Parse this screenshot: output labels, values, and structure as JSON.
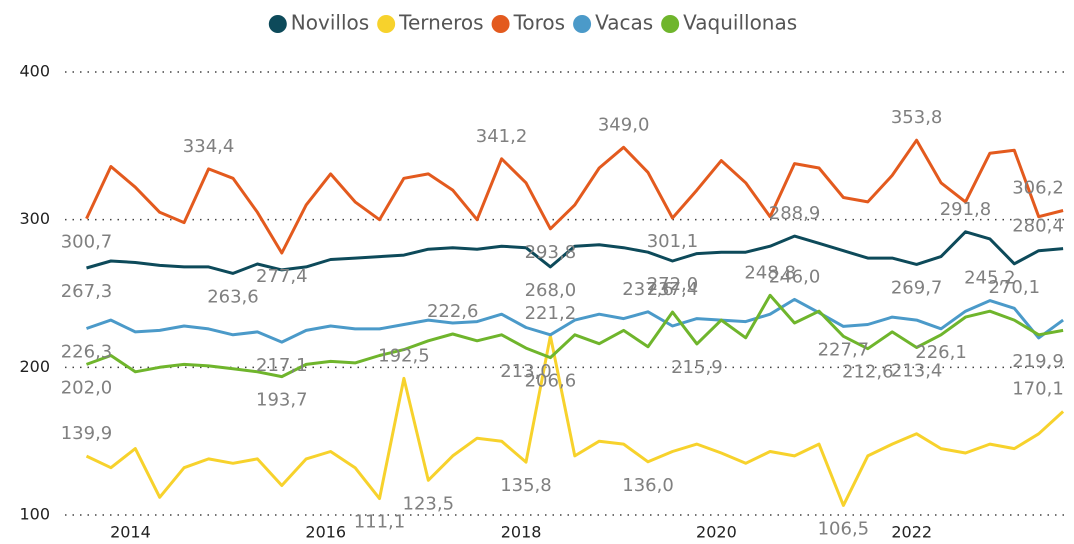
{
  "chart_data": {
    "type": "line",
    "x": [
      2013.55,
      2013.8,
      2014.05,
      2014.3,
      2014.55,
      2014.8,
      2015.05,
      2015.3,
      2015.55,
      2015.8,
      2016.05,
      2016.3,
      2016.55,
      2016.8,
      2017.05,
      2017.3,
      2017.55,
      2017.8,
      2018.05,
      2018.3,
      2018.55,
      2018.8,
      2019.05,
      2019.3,
      2019.55,
      2019.8,
      2020.05,
      2020.3,
      2020.55,
      2020.8,
      2021.05,
      2021.3,
      2021.55,
      2021.8,
      2022.05,
      2022.3,
      2022.55,
      2022.8,
      2023.05,
      2023.3,
      2023.55
    ],
    "xlim": [
      2013.33,
      2023.6
    ],
    "xticks": [
      2014,
      2016,
      2018,
      2020,
      2022
    ],
    "ylim": [
      100,
      400
    ],
    "yticks": [
      100,
      200,
      300,
      400
    ],
    "grid": true,
    "legend": "top",
    "series": [
      {
        "name": "Novillos",
        "color": "#0d4a5a",
        "values": [
          267.3,
          272,
          271,
          269,
          268,
          268,
          263.6,
          270,
          266,
          268,
          273,
          274,
          275,
          276,
          280,
          281,
          280,
          282,
          281,
          268.0,
          282,
          283,
          281,
          278,
          272.0,
          277,
          278,
          278,
          282,
          288.9,
          284,
          279,
          274,
          274,
          269.7,
          275,
          291.8,
          287,
          270.1,
          279,
          280.4
        ],
        "value_labels": [
          "267,3",
          null,
          null,
          null,
          null,
          null,
          "263,6",
          null,
          null,
          null,
          null,
          null,
          null,
          null,
          null,
          null,
          null,
          null,
          null,
          "268,0",
          null,
          null,
          null,
          null,
          "272,0",
          null,
          null,
          null,
          null,
          "288,9",
          null,
          null,
          null,
          null,
          "269,7",
          null,
          "291,8",
          null,
          "270,1",
          null,
          "280,4"
        ]
      },
      {
        "name": "Terneros",
        "color": "#f7d22c",
        "values": [
          139.9,
          132,
          145,
          112,
          132,
          138,
          135,
          138,
          120,
          138,
          143,
          132,
          111.1,
          192.5,
          123.5,
          140,
          152,
          150,
          135.8,
          221.2,
          140,
          150,
          148,
          136.0,
          143,
          148,
          142,
          135,
          143,
          140,
          148,
          106.5,
          140,
          148,
          155,
          145,
          142,
          148,
          145,
          155,
          170.1
        ],
        "value_labels": [
          "139,9",
          null,
          null,
          null,
          null,
          null,
          null,
          null,
          null,
          null,
          null,
          null,
          "111,1",
          "192,5",
          "123,5",
          null,
          null,
          null,
          "135,8",
          "221,2",
          null,
          null,
          null,
          "136,0",
          null,
          null,
          null,
          null,
          null,
          null,
          null,
          "106,5",
          null,
          null,
          null,
          null,
          null,
          null,
          null,
          null,
          "170,1"
        ]
      },
      {
        "name": "Toros",
        "color": "#e35a1e",
        "values": [
          300.7,
          336,
          322,
          305,
          298,
          334.4,
          328,
          305,
          277.4,
          310,
          331,
          312,
          300,
          328,
          331,
          320,
          300,
          341.2,
          325,
          293.8,
          310,
          335,
          349.0,
          332,
          301.1,
          320,
          340,
          325,
          302,
          338,
          335,
          315,
          312,
          330,
          353.8,
          325,
          312,
          345,
          347,
          302,
          306.2
        ],
        "value_labels": [
          "300,7",
          null,
          null,
          null,
          null,
          "334,4",
          null,
          null,
          "277,4",
          null,
          null,
          null,
          null,
          null,
          null,
          null,
          null,
          "341,2",
          null,
          "293,8",
          null,
          null,
          "349,0",
          null,
          "301,1",
          null,
          null,
          null,
          null,
          null,
          null,
          null,
          null,
          null,
          "353,8",
          null,
          null,
          null,
          null,
          null,
          "306,2"
        ]
      },
      {
        "name": "Vacas",
        "color": "#4b9ac9",
        "values": [
          226.3,
          232,
          224,
          225,
          228,
          226,
          222,
          224,
          217.1,
          225,
          228,
          226,
          226,
          229,
          232,
          230,
          231,
          236,
          227,
          222,
          232,
          236,
          233,
          237.6,
          228,
          233,
          232,
          231,
          236,
          246.0,
          237,
          227.7,
          229,
          234,
          232,
          226.1,
          238,
          245.2,
          240,
          219.9,
          232
        ],
        "value_labels": [
          "226,3",
          null,
          null,
          null,
          null,
          null,
          null,
          null,
          "217,1",
          null,
          null,
          null,
          null,
          null,
          null,
          null,
          null,
          null,
          null,
          null,
          null,
          null,
          null,
          "237,6",
          null,
          null,
          null,
          null,
          null,
          "246,0",
          null,
          "227,7",
          null,
          null,
          null,
          "226,1",
          null,
          "245,2",
          null,
          "219,9",
          null
        ]
      },
      {
        "name": "Vaquillonas",
        "color": "#6fb52c",
        "values": [
          202.0,
          208,
          197,
          200,
          202,
          201,
          199,
          197,
          193.7,
          202,
          204,
          203,
          208,
          212,
          218,
          222.6,
          218,
          222,
          213.0,
          206.6,
          222,
          216,
          225,
          214,
          237.4,
          215.9,
          232,
          220,
          248.8,
          230,
          238,
          221,
          212.6,
          224,
          213.4,
          222,
          234,
          238,
          232,
          222,
          225
        ],
        "value_labels": [
          "202,0",
          null,
          null,
          null,
          null,
          null,
          null,
          null,
          "193,7",
          null,
          null,
          null,
          null,
          null,
          null,
          "222,6",
          null,
          null,
          "213,0",
          "206,6",
          null,
          null,
          null,
          null,
          "237,4",
          "215,9",
          null,
          null,
          "248,8",
          null,
          null,
          null,
          "212,6",
          null,
          "213,4",
          null,
          null,
          null,
          null,
          null,
          null
        ]
      }
    ]
  }
}
